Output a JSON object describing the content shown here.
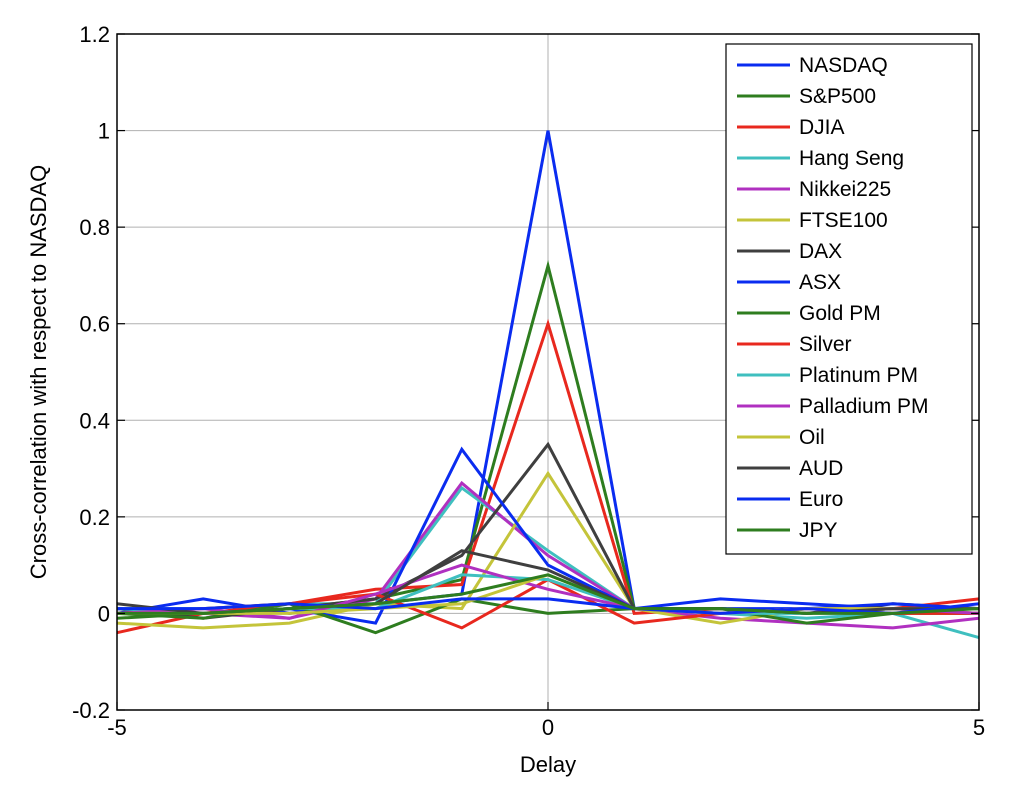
{
  "chart_data": {
    "type": "line",
    "xlabel": "Delay",
    "ylabel": "Cross-correlation with respect to NASDAQ",
    "xlim": [
      -5,
      5
    ],
    "ylim": [
      -0.2,
      1.2
    ],
    "xticks": [
      -5,
      0,
      5
    ],
    "xtick_labels": [
      "-5",
      "0",
      "5"
    ],
    "yticks": [
      -0.2,
      0,
      0.2,
      0.4,
      0.6,
      0.8,
      1,
      1.2
    ],
    "ytick_labels": [
      "-0.2",
      "0",
      "0.2",
      "0.4",
      "0.6",
      "0.8",
      "1",
      "1.2"
    ],
    "grid": true,
    "legend_position": "top-right",
    "x": [
      -5,
      -4,
      -3,
      -2,
      -1,
      0,
      1,
      2,
      3,
      4,
      5
    ],
    "series": [
      {
        "name": "NASDAQ",
        "color": "#0a2cf0",
        "values": [
          0.0,
          0.03,
          0.0,
          0.02,
          0.04,
          1.0,
          0.01,
          0.03,
          0.02,
          0.01,
          0.01
        ]
      },
      {
        "name": "S&P500",
        "color": "#2e7d1f",
        "values": [
          -0.01,
          0.0,
          0.01,
          0.03,
          0.07,
          0.72,
          0.01,
          0.01,
          0.0,
          0.01,
          0.0
        ]
      },
      {
        "name": "DJIA",
        "color": "#e8281e",
        "values": [
          -0.04,
          0.0,
          0.02,
          0.05,
          0.06,
          0.6,
          0.0,
          0.01,
          0.0,
          0.01,
          0.03
        ]
      },
      {
        "name": "Hang Seng",
        "color": "#3fbfbf",
        "values": [
          0.01,
          0.01,
          0.02,
          0.02,
          0.26,
          0.13,
          0.01,
          0.0,
          -0.01,
          0.0,
          -0.05
        ]
      },
      {
        "name": "Nikkei225",
        "color": "#b030c0",
        "values": [
          0.01,
          0.0,
          -0.01,
          0.03,
          0.27,
          0.12,
          0.01,
          -0.01,
          -0.02,
          -0.03,
          -0.01
        ]
      },
      {
        "name": "FTSE100",
        "color": "#c4c43a",
        "values": [
          -0.02,
          -0.03,
          -0.02,
          0.02,
          0.01,
          0.29,
          0.01,
          -0.02,
          0.01,
          0.01,
          0.0
        ]
      },
      {
        "name": "DAX",
        "color": "#3f3f3f",
        "values": [
          0.01,
          -0.01,
          0.01,
          0.03,
          0.12,
          0.35,
          0.01,
          0.01,
          0.0,
          0.02,
          0.01
        ]
      },
      {
        "name": "ASX",
        "color": "#0a2cf0",
        "values": [
          0.01,
          0.0,
          0.01,
          -0.02,
          0.34,
          0.1,
          0.01,
          0.01,
          0.01,
          0.02,
          0.01
        ]
      },
      {
        "name": "Gold PM",
        "color": "#2e7d1f",
        "values": [
          0.0,
          -0.01,
          0.02,
          -0.04,
          0.03,
          0.0,
          0.01,
          0.01,
          -0.02,
          0.0,
          0.0
        ]
      },
      {
        "name": "Silver",
        "color": "#e8281e",
        "values": [
          0.0,
          0.01,
          0.02,
          0.04,
          -0.03,
          0.07,
          -0.02,
          0.0,
          0.01,
          0.0,
          0.0
        ]
      },
      {
        "name": "Platinum PM",
        "color": "#3fbfbf",
        "values": [
          0.01,
          0.0,
          0.01,
          0.01,
          0.08,
          0.07,
          0.01,
          0.0,
          0.0,
          0.01,
          0.01
        ]
      },
      {
        "name": "Palladium PM",
        "color": "#b030c0",
        "values": [
          0.0,
          0.01,
          -0.01,
          0.04,
          0.1,
          0.05,
          0.01,
          0.0,
          0.01,
          0.01,
          0.0
        ]
      },
      {
        "name": "Oil",
        "color": "#c4c43a",
        "values": [
          0.0,
          0.0,
          0.0,
          0.01,
          0.02,
          0.08,
          0.01,
          0.0,
          0.01,
          0.01,
          0.01
        ]
      },
      {
        "name": "AUD",
        "color": "#3f3f3f",
        "values": [
          0.02,
          0.0,
          0.01,
          0.02,
          0.13,
          0.09,
          0.01,
          0.01,
          0.0,
          0.01,
          0.01
        ]
      },
      {
        "name": "Euro",
        "color": "#0a2cf0",
        "values": [
          0.01,
          0.01,
          0.02,
          0.01,
          0.03,
          0.03,
          0.01,
          0.0,
          0.01,
          0.0,
          0.02
        ]
      },
      {
        "name": "JPY",
        "color": "#2e7d1f",
        "values": [
          0.0,
          0.0,
          0.01,
          0.02,
          0.04,
          0.08,
          0.01,
          0.01,
          0.0,
          0.0,
          0.01
        ]
      }
    ]
  }
}
